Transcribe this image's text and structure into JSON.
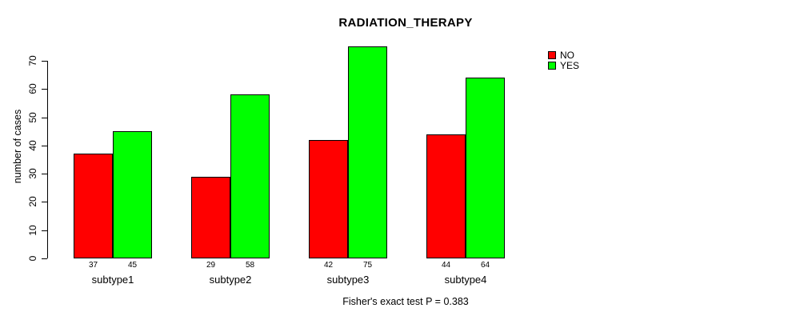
{
  "title": "RADIATION_THERAPY",
  "footnote": "Fisher's exact test P = 0.383",
  "legend": {
    "position": "top-right",
    "items": [
      {
        "label": "NO",
        "color": "#ff0000"
      },
      {
        "label": "YES",
        "color": "#00ff00"
      }
    ]
  },
  "chart_data": {
    "type": "bar",
    "title": "RADIATION_THERAPY",
    "xlabel": "",
    "ylabel": "number of cases",
    "categories": [
      "subtype1",
      "subtype2",
      "subtype3",
      "subtype4"
    ],
    "series": [
      {
        "name": "NO",
        "color": "#ff0000",
        "values": [
          37,
          29,
          42,
          44
        ]
      },
      {
        "name": "YES",
        "color": "#00ff00",
        "values": [
          45,
          58,
          75,
          64
        ]
      }
    ],
    "ylim": [
      0,
      70
    ],
    "yticks": [
      0,
      10,
      20,
      30,
      40,
      50,
      60,
      70
    ],
    "grid": false,
    "bar_border_color": "#000000",
    "value_labels_shown": true,
    "legend_position": "top-right",
    "footnote": "Fisher's exact test P = 0.383"
  }
}
